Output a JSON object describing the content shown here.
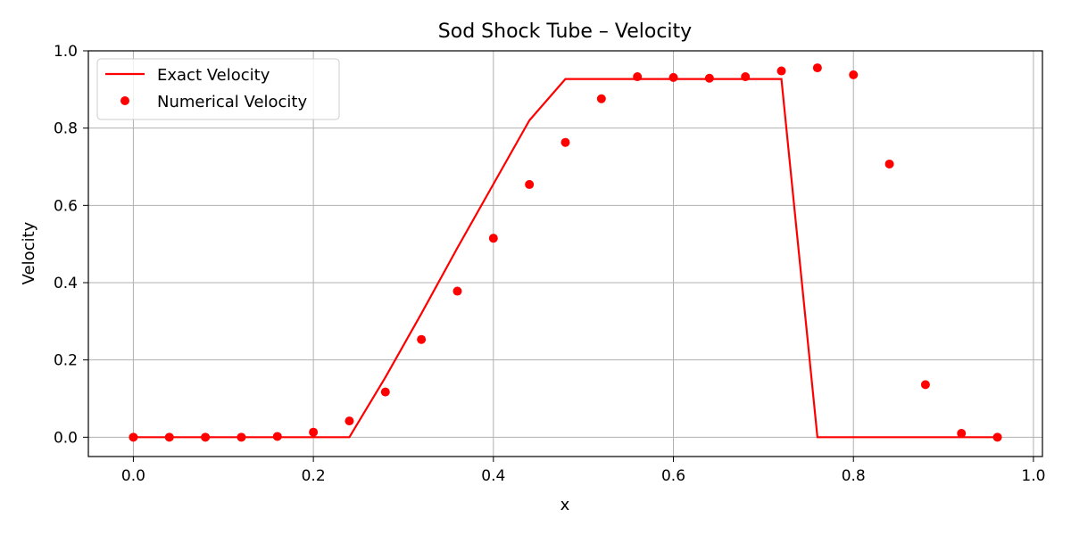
{
  "chart_data": {
    "type": "line",
    "title": "Sod Shock Tube – Velocity",
    "xlabel": "x",
    "ylabel": "Velocity",
    "xlim": [
      -0.05,
      1.01
    ],
    "ylim": [
      -0.05,
      1.0
    ],
    "xticks": [
      0.0,
      0.2,
      0.4,
      0.6,
      0.8,
      1.0
    ],
    "xtick_labels": [
      "0.0",
      "0.2",
      "0.4",
      "0.6",
      "0.8",
      "1.0"
    ],
    "yticks": [
      0.0,
      0.2,
      0.4,
      0.6,
      0.8,
      1.0
    ],
    "ytick_labels": [
      "0.0",
      "0.2",
      "0.4",
      "0.6",
      "0.8",
      "1.0"
    ],
    "grid": true,
    "legend_position": "top-left",
    "series": [
      {
        "name": "Exact Velocity",
        "style": "line",
        "color": "#ff0000",
        "x": [
          0.0,
          0.24,
          0.28,
          0.32,
          0.36,
          0.4,
          0.44,
          0.48,
          0.52,
          0.56,
          0.6,
          0.64,
          0.68,
          0.72,
          0.76,
          0.8,
          0.84,
          0.88,
          0.92,
          0.96
        ],
        "y": [
          0.0,
          0.0,
          0.155,
          0.32,
          0.49,
          0.655,
          0.82,
          0.927,
          0.927,
          0.927,
          0.927,
          0.927,
          0.927,
          0.927,
          0.0,
          0.0,
          0.0,
          0.0,
          0.0,
          0.0
        ]
      },
      {
        "name": "Numerical Velocity",
        "style": "scatter",
        "color": "#ff0000",
        "x": [
          0.0,
          0.04,
          0.08,
          0.12,
          0.16,
          0.2,
          0.24,
          0.28,
          0.32,
          0.36,
          0.4,
          0.44,
          0.48,
          0.52,
          0.56,
          0.6,
          0.64,
          0.68,
          0.72,
          0.76,
          0.8,
          0.84,
          0.88,
          0.92,
          0.96
        ],
        "y": [
          0.0,
          0.0,
          0.0,
          0.0,
          0.002,
          0.013,
          0.042,
          0.117,
          0.253,
          0.378,
          0.515,
          0.654,
          0.763,
          0.876,
          0.933,
          0.931,
          0.929,
          0.933,
          0.948,
          0.956,
          0.938,
          0.707,
          0.136,
          0.01,
          0.0
        ]
      }
    ]
  }
}
